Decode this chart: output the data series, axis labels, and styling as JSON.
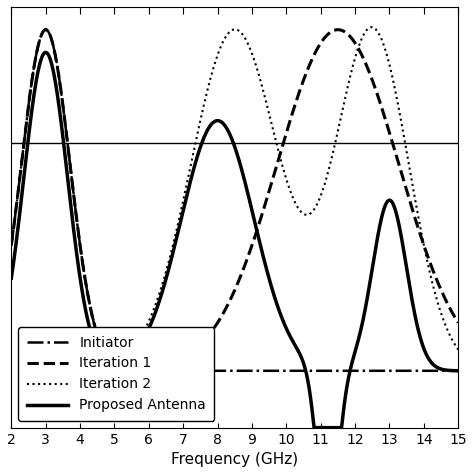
{
  "title": "",
  "xlabel": "Frequency (GHz)",
  "ylabel": "",
  "xlim": [
    2,
    15
  ],
  "ylim": [
    -35,
    2
  ],
  "freq_start": 2,
  "freq_end": 15,
  "legend_labels": [
    "Initiator",
    "Iteration 1",
    "Iteration 2",
    "Proposed Antenna"
  ],
  "line_styles": [
    {
      "linestyle": "-.",
      "linewidth": 1.8,
      "color": "#000000",
      "dashes": [
        6,
        2,
        1,
        2
      ]
    },
    {
      "linestyle": "--",
      "linewidth": 2.2,
      "color": "#000000",
      "dashes": [
        8,
        3
      ]
    },
    {
      "linestyle": ":",
      "linewidth": 1.5,
      "color": "#000000",
      "dashes": [
        1,
        2
      ]
    },
    {
      "linestyle": "-",
      "linewidth": 2.5,
      "color": "#000000"
    }
  ],
  "background_color": "#ffffff",
  "ref_line_y": -10,
  "tick_fontsize": 10,
  "label_fontsize": 11,
  "top_spine_y": 0,
  "legend_loc": "lower left",
  "legend_fontsize": 10
}
